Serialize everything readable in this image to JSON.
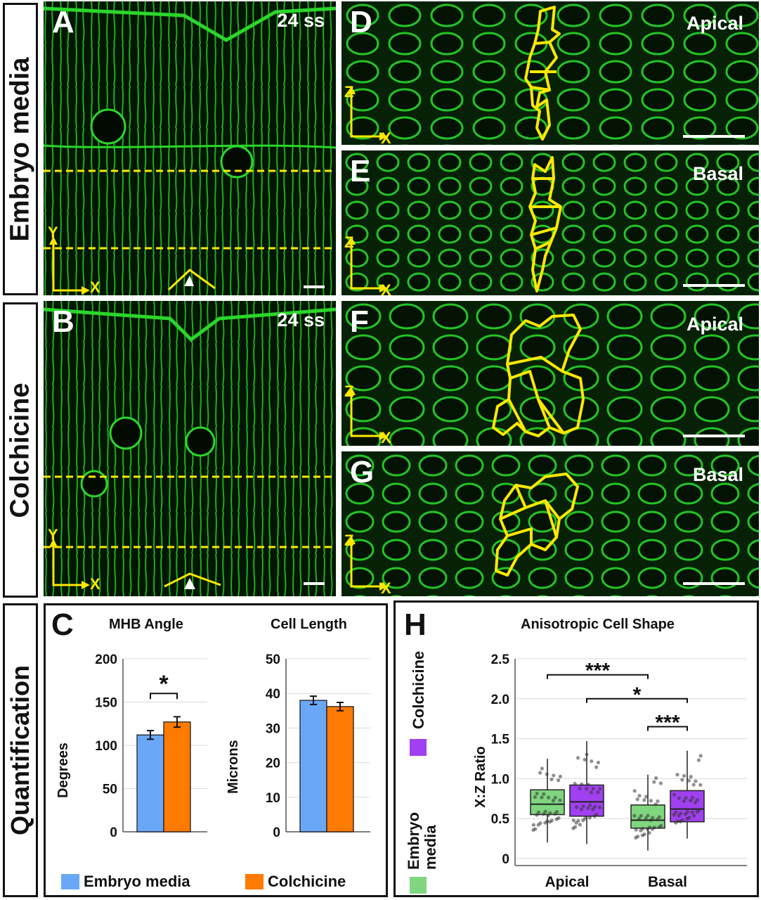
{
  "row_labels": {
    "embryo_media": "Embryo media",
    "colchicine": "Colchicine",
    "quantification": "Quantification"
  },
  "panels": {
    "A": {
      "letter": "A",
      "stage": "24 ss",
      "axis_y": "Y",
      "axis_x": "X"
    },
    "B": {
      "letter": "B",
      "stage": "24 ss",
      "axis_y": "Y",
      "axis_x": "X"
    },
    "D": {
      "letter": "D",
      "label": "Apical",
      "axis_y": "Z",
      "axis_x": "X"
    },
    "E": {
      "letter": "E",
      "label": "Basal",
      "axis_y": "Z",
      "axis_x": "X"
    },
    "F": {
      "letter": "F",
      "label": "Apical",
      "axis_y": "Z",
      "axis_x": "X"
    },
    "G": {
      "letter": "G",
      "label": "Basal",
      "axis_y": "Z",
      "axis_x": "X"
    }
  },
  "colors": {
    "embryo_media_C": "#6aa8f7",
    "colchicine_C": "#ff7a00",
    "embryo_media_H": "#7fd67f",
    "colchicine_H": "#a040f0",
    "membrane": "#2bd62b",
    "outline": "#ffe800"
  },
  "panel_C": {
    "letter": "C",
    "legend": {
      "embryo": "Embryo media",
      "colchicine": "Colchicine"
    }
  },
  "panel_H": {
    "letter": "H",
    "legend": {
      "colchicine": "Colchicine",
      "embryo": "Embryo media"
    }
  },
  "chart_data": [
    {
      "type": "bar",
      "title": "MHB Angle",
      "ylabel": "Degrees",
      "ylim": [
        0,
        200
      ],
      "yticks": [
        0,
        50,
        100,
        150,
        200
      ],
      "series": [
        {
          "name": "Embryo media",
          "values": [
            112
          ],
          "error": [
            5
          ]
        },
        {
          "name": "Colchicine",
          "values": [
            127
          ],
          "error": [
            6
          ]
        }
      ],
      "annotations": [
        {
          "text": "*",
          "between": [
            "Embryo media",
            "Colchicine"
          ]
        }
      ]
    },
    {
      "type": "bar",
      "title": "Cell Length",
      "ylabel": "Microns",
      "ylim": [
        0,
        50
      ],
      "yticks": [
        0,
        10,
        20,
        30,
        40,
        50
      ],
      "series": [
        {
          "name": "Embryo media",
          "values": [
            38
          ],
          "error": [
            1.2
          ]
        },
        {
          "name": "Colchicine",
          "values": [
            36.2
          ],
          "error": [
            1.2
          ]
        }
      ]
    },
    {
      "type": "box",
      "title": "Anisotropic Cell Shape",
      "ylabel": "X:Z Ratio",
      "ylim": [
        0,
        2.5
      ],
      "yticks": [
        0,
        0.5,
        1.0,
        1.5,
        2.0,
        2.5
      ],
      "ytick_labels": [
        "0",
        "0.5",
        "1.0",
        "1.5",
        "2.0",
        "2.5"
      ],
      "categories": [
        "Apical",
        "Basal"
      ],
      "series": [
        {
          "name": "Embryo media",
          "boxes": [
            {
              "min": 0.2,
              "q1": 0.55,
              "median": 0.68,
              "q3": 0.86,
              "max": 1.25
            },
            {
              "min": 0.1,
              "q1": 0.38,
              "median": 0.48,
              "q3": 0.67,
              "max": 1.05
            }
          ]
        },
        {
          "name": "Colchicine",
          "boxes": [
            {
              "min": 0.18,
              "q1": 0.53,
              "median": 0.71,
              "q3": 0.92,
              "max": 1.47
            },
            {
              "min": 0.25,
              "q1": 0.46,
              "median": 0.62,
              "q3": 0.85,
              "max": 1.35
            }
          ]
        }
      ],
      "annotations": [
        {
          "text": "***",
          "between": [
            "Apical Embryo media",
            "Basal Embryo media"
          ],
          "y": 2.3
        },
        {
          "text": "*",
          "between": [
            "Apical Colchicine",
            "Basal Colchicine"
          ],
          "y": 2.0
        },
        {
          "text": "***",
          "between": [
            "Basal Embryo media",
            "Basal Colchicine"
          ],
          "y": 1.65
        }
      ]
    }
  ]
}
